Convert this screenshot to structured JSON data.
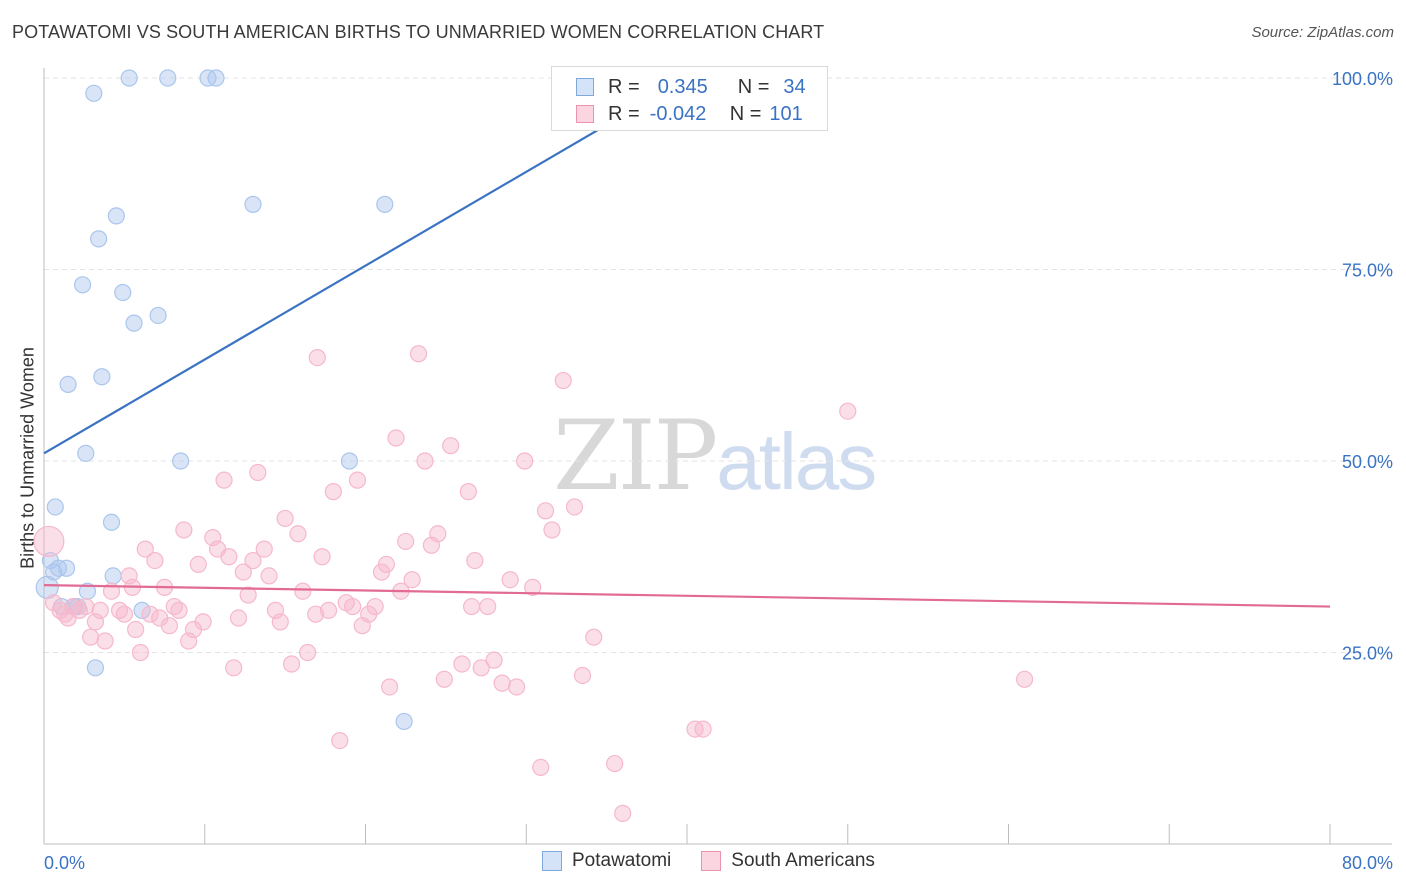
{
  "header": {
    "title": "POTAWATOMI VS SOUTH AMERICAN BIRTHS TO UNMARRIED WOMEN CORRELATION CHART",
    "source": "Source: ZipAtlas.com"
  },
  "watermark": {
    "zip": "ZIP",
    "atlas": "atlas"
  },
  "legend": {
    "rows": [
      {
        "r_label": "R =",
        "r_value": "0.345",
        "n_label": "N =",
        "n_value": "34",
        "swatch_color": "#aac6ee"
      },
      {
        "r_label": "R =",
        "r_value": "-0.042",
        "n_label": "N =",
        "n_value": "101",
        "swatch_color": "#f6b8cb"
      }
    ]
  },
  "bottom_legend": {
    "items": [
      {
        "label": "Potawatomi",
        "color": "#aac6ee"
      },
      {
        "label": "South Americans",
        "color": "#f6b8cb"
      }
    ]
  },
  "chart_data": {
    "type": "scatter",
    "title": "POTAWATOMI VS SOUTH AMERICAN BIRTHS TO UNMARRIED WOMEN CORRELATION CHART",
    "xlabel": "",
    "ylabel": "Births to Unmarried Women",
    "xlim": [
      0,
      80
    ],
    "ylim": [
      0,
      100
    ],
    "x_tick_labels": [
      "0.0%",
      "80.0%"
    ],
    "y_tick_labels": [
      "25.0%",
      "50.0%",
      "75.0%",
      "100.0%"
    ],
    "y_ticks": [
      25,
      50,
      75,
      100
    ],
    "grid": true,
    "legend_position": "top-center",
    "series": [
      {
        "name": "Potawatomi",
        "color": "#3a73c4",
        "fill": "#aac6ee",
        "trend": {
          "x0": 0,
          "y0": 51,
          "x1": 40,
          "y1": 100
        },
        "points": [
          [
            0.2,
            33.5
          ],
          [
            0.4,
            37
          ],
          [
            0.7,
            44
          ],
          [
            0.9,
            36
          ],
          [
            1.1,
            31
          ],
          [
            1.4,
            36
          ],
          [
            1.5,
            60
          ],
          [
            1.9,
            31
          ],
          [
            2.4,
            73
          ],
          [
            2.6,
            51
          ],
          [
            2.7,
            33
          ],
          [
            3.1,
            98
          ],
          [
            3.4,
            79
          ],
          [
            3.6,
            61
          ],
          [
            4.2,
            42
          ],
          [
            4.3,
            35
          ],
          [
            4.5,
            82
          ],
          [
            4.9,
            72
          ],
          [
            5.3,
            100
          ],
          [
            5.6,
            68
          ],
          [
            6.1,
            30.5
          ],
          [
            7.1,
            69
          ],
          [
            7.7,
            100
          ],
          [
            8.5,
            50
          ],
          [
            10.2,
            100
          ],
          [
            10.7,
            100
          ],
          [
            13.0,
            83.5
          ],
          [
            19.0,
            50
          ],
          [
            21.2,
            83.5
          ],
          [
            22.4,
            16
          ],
          [
            37.3,
            100
          ],
          [
            3.2,
            23
          ],
          [
            0.6,
            35.5
          ],
          [
            2.1,
            31
          ]
        ]
      },
      {
        "name": "South Americans",
        "color": "#e26b95",
        "fill": "#f6b8cb",
        "trend": {
          "x0": 0,
          "y0": 33.8,
          "x1": 80,
          "y1": 31
        },
        "points": [
          [
            0.3,
            39.5
          ],
          [
            0.6,
            31.5
          ],
          [
            1.0,
            30.5
          ],
          [
            1.3,
            30
          ],
          [
            1.5,
            29.5
          ],
          [
            1.8,
            31
          ],
          [
            2.2,
            30.5
          ],
          [
            2.6,
            31
          ],
          [
            2.9,
            27
          ],
          [
            3.2,
            29
          ],
          [
            3.5,
            30.5
          ],
          [
            3.8,
            26.5
          ],
          [
            4.2,
            33
          ],
          [
            4.7,
            30.5
          ],
          [
            5.0,
            30
          ],
          [
            5.3,
            35
          ],
          [
            5.5,
            33.5
          ],
          [
            5.7,
            28
          ],
          [
            6.0,
            25
          ],
          [
            6.3,
            38.5
          ],
          [
            6.6,
            30
          ],
          [
            6.9,
            37
          ],
          [
            7.2,
            29.5
          ],
          [
            7.5,
            33.5
          ],
          [
            7.8,
            28.5
          ],
          [
            8.1,
            31
          ],
          [
            8.4,
            30.5
          ],
          [
            8.7,
            41
          ],
          [
            9.0,
            26.5
          ],
          [
            9.3,
            28
          ],
          [
            9.6,
            36.5
          ],
          [
            9.9,
            29
          ],
          [
            10.5,
            40
          ],
          [
            10.8,
            38.5
          ],
          [
            11.2,
            47.5
          ],
          [
            11.5,
            37.5
          ],
          [
            11.8,
            23
          ],
          [
            12.1,
            29.5
          ],
          [
            12.4,
            35.5
          ],
          [
            12.7,
            32.5
          ],
          [
            13.0,
            37
          ],
          [
            13.3,
            48.5
          ],
          [
            13.7,
            38.5
          ],
          [
            14.0,
            35
          ],
          [
            14.4,
            30.5
          ],
          [
            14.7,
            29
          ],
          [
            15.0,
            42.5
          ],
          [
            15.4,
            23.5
          ],
          [
            15.8,
            40.5
          ],
          [
            16.1,
            33
          ],
          [
            16.4,
            25
          ],
          [
            16.9,
            30
          ],
          [
            17.3,
            37.5
          ],
          [
            17.7,
            30.5
          ],
          [
            18.0,
            46
          ],
          [
            18.4,
            13.5
          ],
          [
            18.8,
            31.5
          ],
          [
            19.2,
            31
          ],
          [
            19.5,
            47.5
          ],
          [
            19.8,
            28.5
          ],
          [
            20.2,
            30
          ],
          [
            20.6,
            31
          ],
          [
            21.0,
            35.5
          ],
          [
            21.3,
            36.5
          ],
          [
            21.5,
            20.5
          ],
          [
            21.9,
            53
          ],
          [
            22.2,
            33
          ],
          [
            22.5,
            39.5
          ],
          [
            22.9,
            34.5
          ],
          [
            23.3,
            64
          ],
          [
            23.7,
            50
          ],
          [
            24.1,
            39
          ],
          [
            24.5,
            40.5
          ],
          [
            24.9,
            21.5
          ],
          [
            25.3,
            52
          ],
          [
            26.0,
            23.5
          ],
          [
            26.4,
            46
          ],
          [
            26.8,
            37
          ],
          [
            27.2,
            23
          ],
          [
            27.6,
            31
          ],
          [
            28.0,
            24
          ],
          [
            28.5,
            21
          ],
          [
            29.0,
            34.5
          ],
          [
            29.4,
            20.5
          ],
          [
            29.9,
            50
          ],
          [
            30.4,
            33.5
          ],
          [
            30.9,
            10
          ],
          [
            31.2,
            43.5
          ],
          [
            31.6,
            41
          ],
          [
            32.3,
            60.5
          ],
          [
            33.0,
            44
          ],
          [
            33.5,
            22
          ],
          [
            34.2,
            27
          ],
          [
            35.5,
            10.5
          ],
          [
            36.0,
            4
          ],
          [
            40.5,
            15
          ],
          [
            41.0,
            15
          ],
          [
            50.0,
            56.5
          ],
          [
            61.0,
            21.5
          ],
          [
            17.0,
            63.5
          ],
          [
            26.6,
            31
          ]
        ]
      }
    ]
  }
}
